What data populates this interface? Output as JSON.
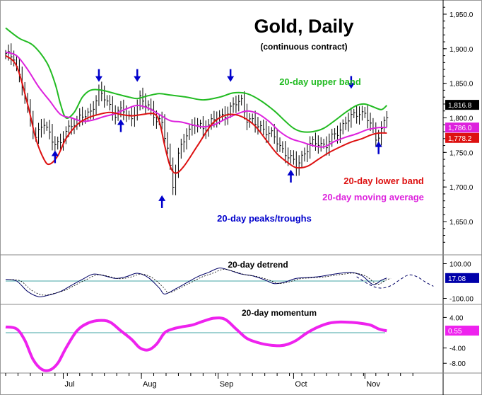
{
  "title": "Gold, Daily",
  "subtitle": "(continuous contract)",
  "colors": {
    "upper_band": "#22bb22",
    "lower_band": "#dd1111",
    "moving_average": "#dd22dd",
    "peaks_troughs": "#0000cc",
    "price_bars": "#000000",
    "detrend": "#000066",
    "momentum": "#ee22ee",
    "zero_line": "#008888",
    "grid": "#bbbbbb"
  },
  "chart_data": [
    {
      "type": "line",
      "panel": "price",
      "ylim": [
        1610,
        1960
      ],
      "y_ticks": [
        "1,950.0",
        "1,900.0",
        "1,850.0",
        "1,800.0",
        "1,750.0",
        "1,700.0",
        "1,650.0"
      ],
      "y_tick_values": [
        1950,
        1900,
        1850,
        1800,
        1750,
        1700,
        1650
      ],
      "x_tick_labels": [
        "Jul",
        "Aug",
        "Sep",
        "Oct",
        "Nov"
      ],
      "labels": {
        "upper_band": "20-day upper band",
        "lower_band": "20-day lower band",
        "moving_average": "20-day moving average",
        "peaks_troughs": "20-day peaks/troughs"
      },
      "last_values": {
        "close": "1,816.8",
        "moving_average": "1,786.0",
        "lower_band": "1,778.2"
      },
      "price_keypoints": [
        [
          0,
          1890
        ],
        [
          3,
          1890
        ],
        [
          6,
          1845
        ],
        [
          8,
          1810
        ],
        [
          11,
          1775
        ],
        [
          14,
          1790
        ],
        [
          17,
          1770
        ],
        [
          20,
          1760
        ],
        [
          22,
          1780
        ],
        [
          25,
          1795
        ],
        [
          28,
          1800
        ],
        [
          31,
          1810
        ],
        [
          34,
          1835
        ],
        [
          37,
          1825
        ],
        [
          40,
          1805
        ],
        [
          43,
          1810
        ],
        [
          46,
          1800
        ],
        [
          49,
          1825
        ],
        [
          52,
          1820
        ],
        [
          55,
          1795
        ],
        [
          57,
          1790
        ],
        [
          59,
          1760
        ],
        [
          61,
          1700
        ],
        [
          63,
          1745
        ],
        [
          66,
          1780
        ],
        [
          69,
          1790
        ],
        [
          72,
          1785
        ],
        [
          75,
          1795
        ],
        [
          78,
          1800
        ],
        [
          81,
          1810
        ],
        [
          84,
          1820
        ],
        [
          86,
          1825
        ],
        [
          88,
          1800
        ],
        [
          91,
          1790
        ],
        [
          94,
          1785
        ],
        [
          97,
          1775
        ],
        [
          100,
          1760
        ],
        [
          103,
          1745
        ],
        [
          106,
          1730
        ],
        [
          108,
          1745
        ],
        [
          111,
          1760
        ],
        [
          114,
          1765
        ],
        [
          117,
          1760
        ],
        [
          120,
          1775
        ],
        [
          123,
          1790
        ],
        [
          126,
          1800
        ],
        [
          129,
          1810
        ],
        [
          131,
          1805
        ],
        [
          133,
          1790
        ],
        [
          135,
          1770
        ],
        [
          137,
          1785
        ],
        [
          139,
          1800
        ]
      ],
      "upper_band_keypoints": [
        [
          0,
          1930
        ],
        [
          5,
          1915
        ],
        [
          10,
          1905
        ],
        [
          15,
          1880
        ],
        [
          18,
          1850
        ],
        [
          20,
          1820
        ],
        [
          22,
          1800
        ],
        [
          25,
          1808
        ],
        [
          28,
          1830
        ],
        [
          31,
          1840
        ],
        [
          35,
          1840
        ],
        [
          40,
          1835
        ],
        [
          45,
          1830
        ],
        [
          48,
          1828
        ],
        [
          52,
          1832
        ],
        [
          56,
          1835
        ],
        [
          60,
          1833
        ],
        [
          66,
          1830
        ],
        [
          72,
          1826
        ],
        [
          78,
          1830
        ],
        [
          83,
          1836
        ],
        [
          88,
          1835
        ],
        [
          93,
          1825
        ],
        [
          98,
          1810
        ],
        [
          102,
          1795
        ],
        [
          105,
          1785
        ],
        [
          108,
          1780
        ],
        [
          112,
          1780
        ],
        [
          116,
          1785
        ],
        [
          120,
          1796
        ],
        [
          124,
          1808
        ],
        [
          128,
          1818
        ],
        [
          131,
          1820
        ],
        [
          134,
          1816
        ],
        [
          137,
          1812
        ],
        [
          139,
          1818
        ]
      ],
      "lower_band_keypoints": [
        [
          0,
          1890
        ],
        [
          4,
          1875
        ],
        [
          8,
          1820
        ],
        [
          11,
          1770
        ],
        [
          14,
          1740
        ],
        [
          16,
          1733
        ],
        [
          19,
          1745
        ],
        [
          22,
          1770
        ],
        [
          26,
          1790
        ],
        [
          30,
          1800
        ],
        [
          34,
          1805
        ],
        [
          38,
          1808
        ],
        [
          42,
          1805
        ],
        [
          46,
          1803
        ],
        [
          50,
          1805
        ],
        [
          54,
          1806
        ],
        [
          56,
          1795
        ],
        [
          58,
          1760
        ],
        [
          60,
          1730
        ],
        [
          62,
          1720
        ],
        [
          65,
          1730
        ],
        [
          70,
          1760
        ],
        [
          75,
          1790
        ],
        [
          79,
          1802
        ],
        [
          83,
          1805
        ],
        [
          87,
          1800
        ],
        [
          91,
          1788
        ],
        [
          95,
          1768
        ],
        [
          99,
          1748
        ],
        [
          103,
          1735
        ],
        [
          106,
          1728
        ],
        [
          110,
          1730
        ],
        [
          114,
          1740
        ],
        [
          118,
          1750
        ],
        [
          122,
          1758
        ],
        [
          126,
          1765
        ],
        [
          130,
          1770
        ],
        [
          133,
          1775
        ],
        [
          136,
          1778
        ],
        [
          139,
          1778
        ]
      ],
      "moving_average_keypoints": [
        [
          0,
          1895
        ],
        [
          4,
          1890
        ],
        [
          8,
          1870
        ],
        [
          12,
          1845
        ],
        [
          16,
          1825
        ],
        [
          20,
          1805
        ],
        [
          24,
          1800
        ],
        [
          28,
          1795
        ],
        [
          32,
          1797
        ],
        [
          36,
          1802
        ],
        [
          40,
          1806
        ],
        [
          44,
          1813
        ],
        [
          48,
          1818
        ],
        [
          52,
          1814
        ],
        [
          56,
          1805
        ],
        [
          60,
          1796
        ],
        [
          64,
          1794
        ],
        [
          68,
          1790
        ],
        [
          72,
          1787
        ],
        [
          76,
          1790
        ],
        [
          80,
          1798
        ],
        [
          84,
          1805
        ],
        [
          88,
          1810
        ],
        [
          92,
          1806
        ],
        [
          96,
          1795
        ],
        [
          100,
          1780
        ],
        [
          104,
          1770
        ],
        [
          108,
          1765
        ],
        [
          112,
          1760
        ],
        [
          116,
          1758
        ],
        [
          120,
          1766
        ],
        [
          124,
          1772
        ],
        [
          128,
          1777
        ],
        [
          132,
          1783
        ],
        [
          136,
          1786
        ],
        [
          139,
          1786
        ]
      ],
      "peaks": [
        [
          34,
          1850
        ],
        [
          48,
          1850
        ],
        [
          82,
          1850
        ],
        [
          126,
          1840
        ]
      ],
      "troughs": [
        [
          18,
          1755
        ],
        [
          42,
          1800
        ],
        [
          57,
          1690
        ],
        [
          104,
          1727
        ],
        [
          136,
          1768
        ]
      ]
    },
    {
      "type": "line",
      "panel": "detrend",
      "title": "20-day detrend",
      "ylim": [
        -120,
        120
      ],
      "y_ticks": [
        "100.00",
        "-100.00"
      ],
      "y_tick_values": [
        100,
        -100
      ],
      "last_value": "17.08",
      "keypoints": [
        [
          0,
          10
        ],
        [
          4,
          0
        ],
        [
          8,
          -60
        ],
        [
          12,
          -90
        ],
        [
          16,
          -80
        ],
        [
          20,
          -60
        ],
        [
          24,
          -25
        ],
        [
          28,
          10
        ],
        [
          32,
          40
        ],
        [
          36,
          30
        ],
        [
          40,
          15
        ],
        [
          44,
          25
        ],
        [
          48,
          45
        ],
        [
          52,
          20
        ],
        [
          56,
          -40
        ],
        [
          58,
          -75
        ],
        [
          62,
          -45
        ],
        [
          66,
          -10
        ],
        [
          70,
          25
        ],
        [
          74,
          50
        ],
        [
          78,
          75
        ],
        [
          82,
          60
        ],
        [
          86,
          40
        ],
        [
          90,
          30
        ],
        [
          94,
          10
        ],
        [
          98,
          -15
        ],
        [
          102,
          -5
        ],
        [
          106,
          15
        ],
        [
          110,
          20
        ],
        [
          114,
          25
        ],
        [
          118,
          35
        ],
        [
          122,
          45
        ],
        [
          126,
          50
        ],
        [
          130,
          30
        ],
        [
          134,
          -20
        ],
        [
          137,
          5
        ],
        [
          139,
          17
        ]
      ],
      "projection": [
        [
          128,
          25
        ],
        [
          132,
          -15
        ],
        [
          136,
          -40
        ],
        [
          140,
          -30
        ],
        [
          144,
          10
        ],
        [
          147,
          35
        ],
        [
          150,
          25
        ],
        [
          153,
          -5
        ],
        [
          156,
          -30
        ]
      ]
    },
    {
      "type": "line",
      "panel": "momentum",
      "title": "20-day momentum",
      "ylim": [
        -10.5,
        5
      ],
      "y_ticks": [
        "4.00",
        "-4.00",
        "-8.00"
      ],
      "y_tick_values": [
        4,
        -4,
        -8
      ],
      "last_value": "0.55",
      "keypoints": [
        [
          0,
          1.5
        ],
        [
          4,
          1
        ],
        [
          7,
          -2
        ],
        [
          10,
          -7
        ],
        [
          13,
          -9.5
        ],
        [
          16,
          -9.8
        ],
        [
          19,
          -8
        ],
        [
          22,
          -4
        ],
        [
          26,
          0.5
        ],
        [
          30,
          2.5
        ],
        [
          34,
          3.2
        ],
        [
          38,
          2.8
        ],
        [
          42,
          0.5
        ],
        [
          46,
          -1.8
        ],
        [
          49,
          -4
        ],
        [
          52,
          -4.5
        ],
        [
          55,
          -3
        ],
        [
          58,
          0
        ],
        [
          61,
          1
        ],
        [
          64,
          1.5
        ],
        [
          68,
          2
        ],
        [
          72,
          3
        ],
        [
          76,
          3.8
        ],
        [
          80,
          3.5
        ],
        [
          84,
          1
        ],
        [
          88,
          -1.5
        ],
        [
          92,
          -2.6
        ],
        [
          96,
          -3.2
        ],
        [
          100,
          -3.4
        ],
        [
          103,
          -3
        ],
        [
          106,
          -2
        ],
        [
          110,
          0
        ],
        [
          114,
          1.5
        ],
        [
          118,
          2.5
        ],
        [
          122,
          2.8
        ],
        [
          126,
          2.7
        ],
        [
          129,
          2.5
        ],
        [
          133,
          2
        ],
        [
          136,
          1
        ],
        [
          139,
          0.5
        ]
      ]
    }
  ]
}
